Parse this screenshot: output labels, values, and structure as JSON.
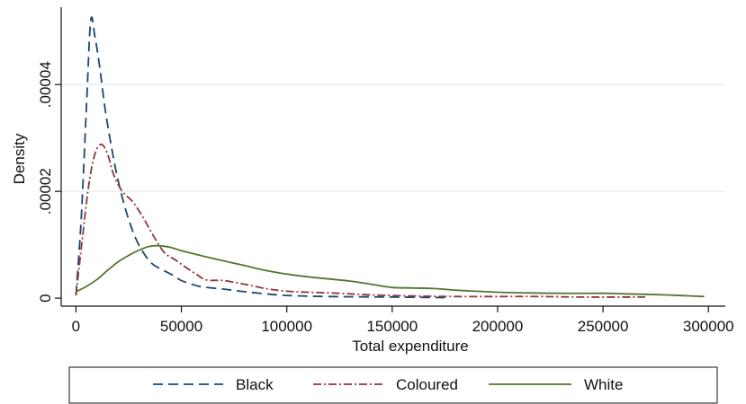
{
  "chart_data": {
    "type": "line",
    "title": "",
    "xlabel": "Total expenditure",
    "ylabel": "Density",
    "xlim": [
      -7000,
      308000
    ],
    "ylim": [
      -1.5e-06,
      5.45e-05
    ],
    "x_ticks": [
      0,
      50000,
      100000,
      150000,
      200000,
      250000,
      300000
    ],
    "x_tick_labels": [
      "0",
      "50000",
      "100000",
      "150000",
      "200000",
      "250000",
      "300000"
    ],
    "y_ticks": [
      0,
      2e-05,
      4e-05
    ],
    "y_tick_labels": [
      "0",
      ".00002",
      ".00004"
    ],
    "grid": "horizontal",
    "legend_position": "bottom",
    "series": [
      {
        "name": "Black",
        "color": "#1a476f",
        "dash": "dash",
        "points": [
          [
            0,
            5e-07
          ],
          [
            2500,
            1.5e-05
          ],
          [
            5000,
            3.6e-05
          ],
          [
            7000,
            5.2e-05
          ],
          [
            9000,
            4.9e-05
          ],
          [
            11000,
            4.4e-05
          ],
          [
            14000,
            3.5e-05
          ],
          [
            17000,
            2.8e-05
          ],
          [
            20000,
            2.2e-05
          ],
          [
            24000,
            1.6e-05
          ],
          [
            28000,
            1.15e-05
          ],
          [
            32000,
            8.5e-06
          ],
          [
            36000,
            6.5e-06
          ],
          [
            40000,
            5.5e-06
          ],
          [
            45000,
            4.5e-06
          ],
          [
            50000,
            3.3e-06
          ],
          [
            55000,
            2.6e-06
          ],
          [
            60000,
            2.1e-06
          ],
          [
            70000,
            1.7e-06
          ],
          [
            80000,
            1.2e-06
          ],
          [
            90000,
            8e-07
          ],
          [
            100000,
            5e-07
          ],
          [
            120000,
            3e-07
          ],
          [
            150000,
            2e-07
          ],
          [
            175000,
            1e-07
          ]
        ]
      },
      {
        "name": "Coloured",
        "color": "#90353b",
        "dash": "dashdot",
        "points": [
          [
            0,
            5e-07
          ],
          [
            3000,
            1.1e-05
          ],
          [
            6000,
            2.1e-05
          ],
          [
            9000,
            2.7e-05
          ],
          [
            12000,
            2.88e-05
          ],
          [
            15000,
            2.7e-05
          ],
          [
            18000,
            2.3e-05
          ],
          [
            22000,
            2e-05
          ],
          [
            27000,
            1.8e-05
          ],
          [
            32000,
            1.5e-05
          ],
          [
            37000,
            1.15e-05
          ],
          [
            42000,
            8.5e-06
          ],
          [
            47000,
            7.2e-06
          ],
          [
            52000,
            5.8e-06
          ],
          [
            57000,
            4.5e-06
          ],
          [
            62000,
            3.4e-06
          ],
          [
            70000,
            3.3e-06
          ],
          [
            80000,
            2.6e-06
          ],
          [
            90000,
            1.8e-06
          ],
          [
            100000,
            1.3e-06
          ],
          [
            110000,
            1.1e-06
          ],
          [
            125000,
            9e-07
          ],
          [
            140000,
            6e-07
          ],
          [
            160000,
            4e-07
          ],
          [
            180000,
            3e-07
          ],
          [
            200000,
            3e-07
          ],
          [
            220000,
            3e-07
          ],
          [
            240000,
            2e-07
          ],
          [
            270000,
            2e-07
          ]
        ]
      },
      {
        "name": "White",
        "color": "#55752f",
        "dash": "solid",
        "points": [
          [
            0,
            1.2e-06
          ],
          [
            5000,
            2.2e-06
          ],
          [
            10000,
            3.5e-06
          ],
          [
            15000,
            5.2e-06
          ],
          [
            20000,
            6.8e-06
          ],
          [
            25000,
            8e-06
          ],
          [
            30000,
            9e-06
          ],
          [
            35000,
            9.7e-06
          ],
          [
            40000,
            9.8e-06
          ],
          [
            45000,
            9.5e-06
          ],
          [
            50000,
            8.9e-06
          ],
          [
            60000,
            7.9e-06
          ],
          [
            70000,
            7e-06
          ],
          [
            80000,
            6.1e-06
          ],
          [
            90000,
            5.2e-06
          ],
          [
            100000,
            4.5e-06
          ],
          [
            110000,
            4e-06
          ],
          [
            120000,
            3.6e-06
          ],
          [
            130000,
            3.2e-06
          ],
          [
            140000,
            2.6e-06
          ],
          [
            150000,
            2e-06
          ],
          [
            160000,
            1.9e-06
          ],
          [
            170000,
            1.8e-06
          ],
          [
            180000,
            1.5e-06
          ],
          [
            190000,
            1.3e-06
          ],
          [
            200000,
            1.1e-06
          ],
          [
            210000,
            1e-06
          ],
          [
            230000,
            9e-07
          ],
          [
            250000,
            9e-07
          ],
          [
            260000,
            8e-07
          ],
          [
            280000,
            6e-07
          ],
          [
            298000,
            3e-07
          ]
        ]
      }
    ]
  }
}
